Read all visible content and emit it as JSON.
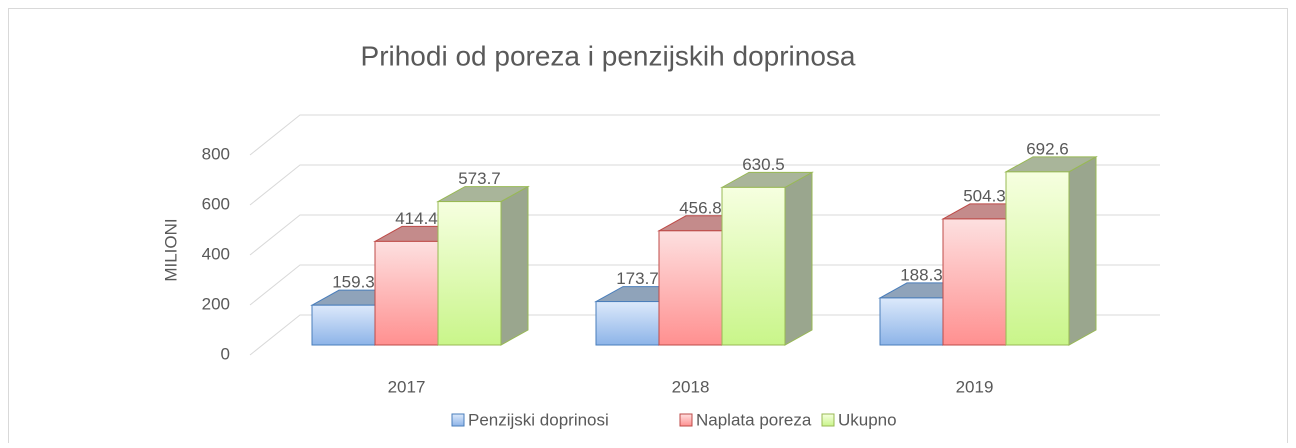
{
  "chart_data": {
    "type": "bar",
    "title": "Prihodi od poreza i penzijskih doprinosa",
    "y_label": "MILIONI",
    "categories": [
      "2017",
      "2018",
      "2019"
    ],
    "series": [
      {
        "name": "Penzijski doprinosi",
        "color": "#8db4e8",
        "values": [
          159.3,
          173.7,
          188.3
        ]
      },
      {
        "name": "Naplata poreza",
        "color": "#ff9090",
        "values": [
          414.4,
          456.8,
          504.3
        ]
      },
      {
        "name": "Ukupno",
        "color": "#c9f58a",
        "values": [
          573.7,
          630.5,
          692.6
        ]
      }
    ],
    "ylim": [
      0,
      800
    ],
    "yticks": [
      0,
      200,
      400,
      600,
      800
    ],
    "grid": true,
    "legend": "bottom"
  }
}
